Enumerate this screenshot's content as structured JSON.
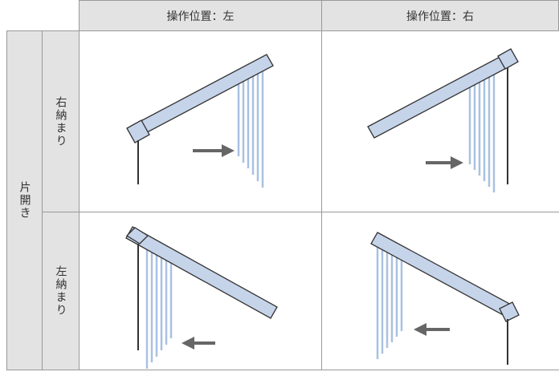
{
  "table": {
    "columns": [
      "操作位置：左",
      "操作位置：右"
    ],
    "group": "片開き",
    "rows": [
      "右納まり",
      "左納まり"
    ]
  }
}
